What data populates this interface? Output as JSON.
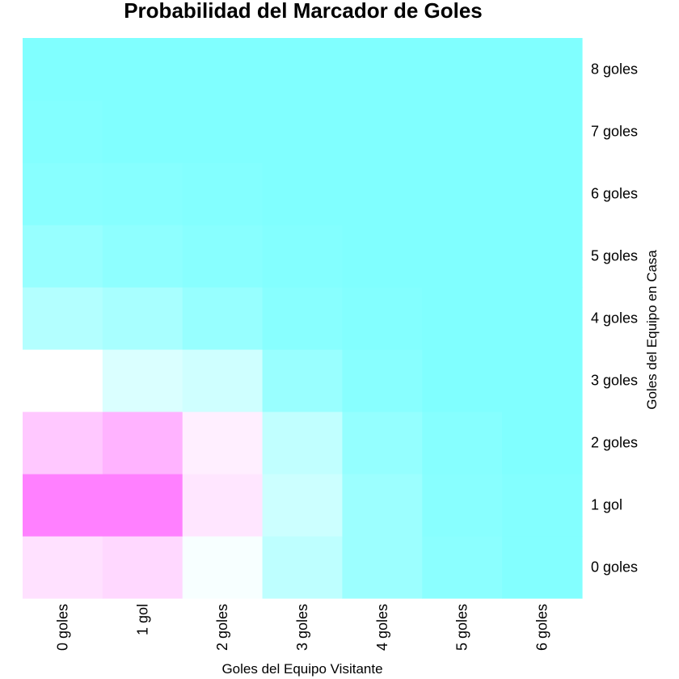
{
  "chart_data": {
    "type": "heatmap",
    "title": "Probabilidad del Marcador de Goles",
    "xlabel": "Goles del Equipo Visitante",
    "ylabel": "Goles del Equipo en Casa",
    "x_categories": [
      "0 goles",
      "1 gol",
      "2 goles",
      "3 goles",
      "4 goles",
      "5 goles",
      "6 goles"
    ],
    "y_categories": [
      "0 goles",
      "1 gol",
      "2 goles",
      "3 goles",
      "4 goles",
      "5 goles",
      "6 goles",
      "7 goles",
      "8 goles"
    ],
    "color_scale": {
      "low": "#80ffff",
      "mid": "#ffffff",
      "high": "#ff80ff"
    },
    "values": [
      [
        0.58,
        0.62,
        0.42,
        0.22,
        0.1,
        0.04,
        0.01
      ],
      [
        1.0,
        1.0,
        0.56,
        0.27,
        0.1,
        0.03,
        0.01
      ],
      [
        0.69,
        0.78,
        0.52,
        0.23,
        0.07,
        0.02,
        0.0
      ],
      [
        0.45,
        0.32,
        0.28,
        0.09,
        0.03,
        0.0,
        0.0
      ],
      [
        0.18,
        0.14,
        0.08,
        0.03,
        0.01,
        0.0,
        0.0
      ],
      [
        0.08,
        0.05,
        0.03,
        0.01,
        0.0,
        0.0,
        0.0
      ],
      [
        0.03,
        0.02,
        0.01,
        0.0,
        0.0,
        0.0,
        0.0
      ],
      [
        0.01,
        0.0,
        0.0,
        0.0,
        0.0,
        0.0,
        0.0
      ],
      [
        0.0,
        0.0,
        0.0,
        0.0,
        0.0,
        0.0,
        0.0
      ]
    ]
  }
}
